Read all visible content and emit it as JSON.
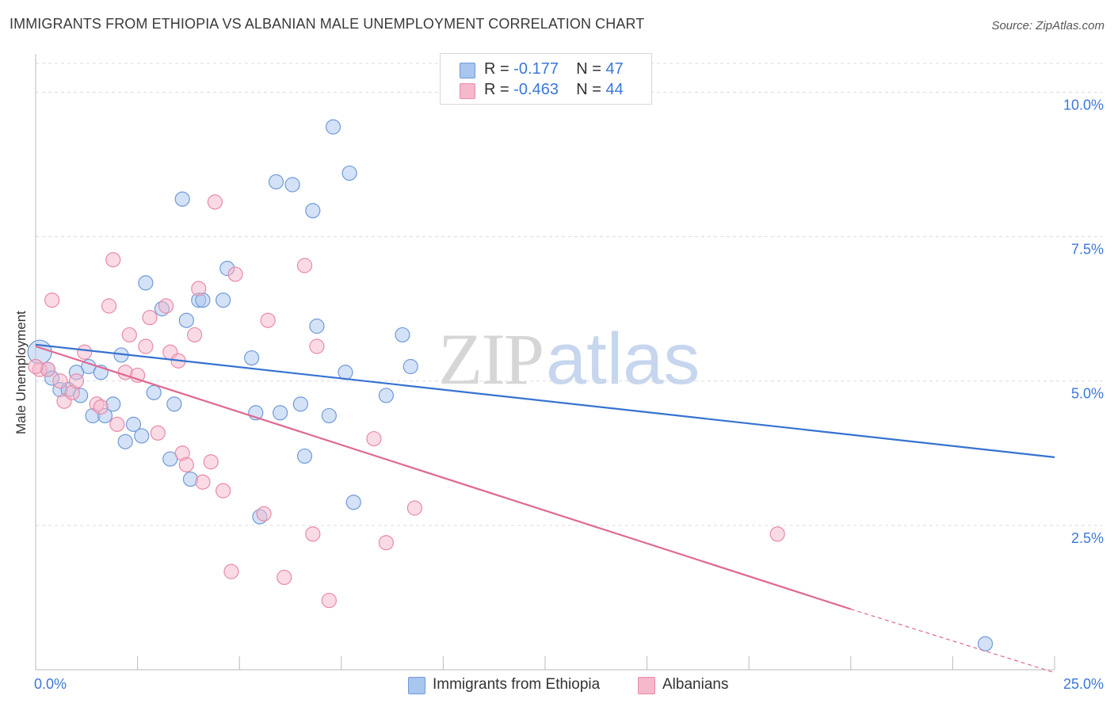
{
  "header": {
    "title": "IMMIGRANTS FROM ETHIOPIA VS ALBANIAN MALE UNEMPLOYMENT CORRELATION CHART",
    "source": "Source: ZipAtlas.com"
  },
  "watermark": {
    "zip": "ZIP",
    "atlas": "atlas"
  },
  "legend_top": [
    {
      "r_label": "R =",
      "r_value": "-0.177",
      "n_label": "N =",
      "n_value": "47"
    },
    {
      "r_label": "R =",
      "r_value": "-0.463",
      "n_label": "N =",
      "n_value": "44"
    }
  ],
  "legend_bottom": [
    {
      "label": "Immigrants from Ethiopia"
    },
    {
      "label": "Albanians"
    }
  ],
  "colors": {
    "blue_fill": "#a9c6ef",
    "blue_stroke": "#6f9ad8",
    "blue_line": "#3672d1",
    "pink_fill": "#f6b8cb",
    "pink_stroke": "#e88aa7",
    "pink_line": "#e06891",
    "tick_label": "#3b78d8",
    "grid": "#dcdcdc"
  },
  "chart_data": {
    "type": "scatter",
    "title": "IMMIGRANTS FROM ETHIOPIA VS ALBANIAN MALE UNEMPLOYMENT CORRELATION CHART",
    "xlabel": "",
    "ylabel": "Male Unemployment",
    "xlim": [
      0,
      25
    ],
    "ylim": [
      0,
      10.5
    ],
    "x_tick_labels": [
      "0.0%",
      "25.0%"
    ],
    "y_ticks": [
      2.5,
      5.0,
      7.5,
      10.0
    ],
    "y_tick_labels": [
      "2.5%",
      "5.0%",
      "7.5%",
      "10.0%"
    ],
    "grid": "horizontal dashed",
    "legend_position": "top-center",
    "series": [
      {
        "name": "Immigrants from Ethiopia",
        "color": "blue",
        "trendline": {
          "x": [
            0,
            25
          ],
          "y": [
            5.63,
            3.68
          ]
        },
        "points": [
          [
            0.1,
            5.5
          ],
          [
            0.3,
            5.2
          ],
          [
            0.4,
            5.05
          ],
          [
            0.6,
            4.85
          ],
          [
            0.8,
            4.85
          ],
          [
            1.0,
            5.15
          ],
          [
            1.1,
            4.75
          ],
          [
            1.3,
            5.25
          ],
          [
            1.4,
            4.4
          ],
          [
            1.6,
            5.15
          ],
          [
            1.7,
            4.4
          ],
          [
            1.9,
            4.6
          ],
          [
            2.1,
            5.45
          ],
          [
            2.2,
            3.95
          ],
          [
            2.4,
            4.25
          ],
          [
            2.6,
            4.05
          ],
          [
            2.7,
            6.7
          ],
          [
            2.9,
            4.8
          ],
          [
            3.1,
            6.25
          ],
          [
            3.3,
            3.65
          ],
          [
            3.4,
            4.6
          ],
          [
            3.6,
            8.15
          ],
          [
            3.7,
            6.05
          ],
          [
            3.8,
            3.3
          ],
          [
            4.0,
            6.4
          ],
          [
            4.1,
            6.4
          ],
          [
            4.6,
            6.4
          ],
          [
            4.7,
            6.95
          ],
          [
            5.3,
            5.4
          ],
          [
            5.4,
            4.45
          ],
          [
            5.5,
            2.65
          ],
          [
            5.9,
            8.45
          ],
          [
            6.0,
            4.45
          ],
          [
            6.3,
            8.4
          ],
          [
            6.5,
            4.6
          ],
          [
            6.6,
            3.7
          ],
          [
            6.8,
            7.95
          ],
          [
            6.9,
            5.95
          ],
          [
            7.2,
            4.4
          ],
          [
            7.3,
            9.4
          ],
          [
            7.6,
            5.15
          ],
          [
            7.7,
            8.6
          ],
          [
            7.8,
            2.9
          ],
          [
            8.6,
            4.75
          ],
          [
            9.0,
            5.8
          ],
          [
            9.2,
            5.25
          ],
          [
            23.3,
            0.45
          ]
        ]
      },
      {
        "name": "Albanians",
        "color": "pink",
        "trendline": {
          "x": [
            0,
            20
          ],
          "y": [
            5.6,
            1.05
          ],
          "dashed_extension": {
            "x": [
              20,
              25
            ],
            "y": [
              1.05,
              -0.05
            ]
          }
        },
        "points": [
          [
            0.1,
            5.2
          ],
          [
            0.3,
            5.2
          ],
          [
            0.4,
            6.4
          ],
          [
            0.6,
            5.0
          ],
          [
            0.7,
            4.65
          ],
          [
            0.9,
            4.8
          ],
          [
            1.0,
            5.0
          ],
          [
            1.2,
            5.5
          ],
          [
            1.5,
            4.6
          ],
          [
            1.6,
            4.55
          ],
          [
            1.8,
            6.3
          ],
          [
            1.9,
            7.1
          ],
          [
            2.0,
            4.25
          ],
          [
            2.2,
            5.15
          ],
          [
            2.3,
            5.8
          ],
          [
            2.5,
            5.1
          ],
          [
            2.7,
            5.6
          ],
          [
            2.8,
            6.1
          ],
          [
            3.0,
            4.1
          ],
          [
            3.2,
            6.3
          ],
          [
            3.3,
            5.5
          ],
          [
            3.5,
            5.35
          ],
          [
            3.6,
            3.75
          ],
          [
            3.7,
            3.55
          ],
          [
            3.9,
            5.8
          ],
          [
            4.0,
            6.6
          ],
          [
            4.1,
            3.25
          ],
          [
            4.3,
            3.6
          ],
          [
            4.4,
            8.1
          ],
          [
            4.6,
            3.1
          ],
          [
            4.8,
            1.7
          ],
          [
            4.9,
            6.85
          ],
          [
            5.6,
            2.7
          ],
          [
            5.7,
            6.05
          ],
          [
            6.1,
            1.6
          ],
          [
            6.6,
            7.0
          ],
          [
            6.8,
            2.35
          ],
          [
            6.9,
            5.6
          ],
          [
            7.2,
            1.2
          ],
          [
            8.3,
            4.0
          ],
          [
            8.6,
            2.2
          ],
          [
            9.3,
            2.8
          ],
          [
            18.2,
            2.35
          ],
          [
            0.0,
            5.25
          ]
        ]
      }
    ]
  }
}
